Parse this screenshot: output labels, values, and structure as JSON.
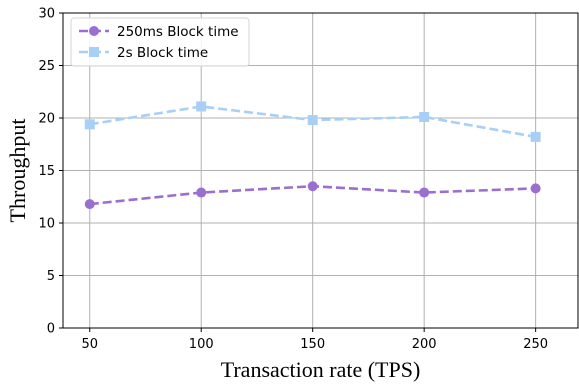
{
  "chart_data": {
    "type": "line",
    "x": [
      50,
      100,
      150,
      200,
      250
    ],
    "series": [
      {
        "name": "250ms Block time",
        "values": [
          11.8,
          12.9,
          13.5,
          12.9,
          13.3
        ],
        "color": "#9b6fcf",
        "marker": "circle",
        "linestyle": "dashed"
      },
      {
        "name": "2s Block time",
        "values": [
          19.4,
          21.1,
          19.8,
          20.1,
          18.2
        ],
        "color": "#a8cff5",
        "marker": "square",
        "linestyle": "dashed"
      }
    ],
    "title": "",
    "xlabel": "Transaction rate (TPS)",
    "ylabel": "Throughput",
    "xlim": [
      38,
      269
    ],
    "ylim": [
      0,
      30
    ],
    "xticks": [
      50,
      100,
      150,
      200,
      250
    ],
    "yticks": [
      0,
      5,
      10,
      15,
      20,
      25,
      30
    ],
    "grid": true,
    "legend_position": "top-left"
  }
}
